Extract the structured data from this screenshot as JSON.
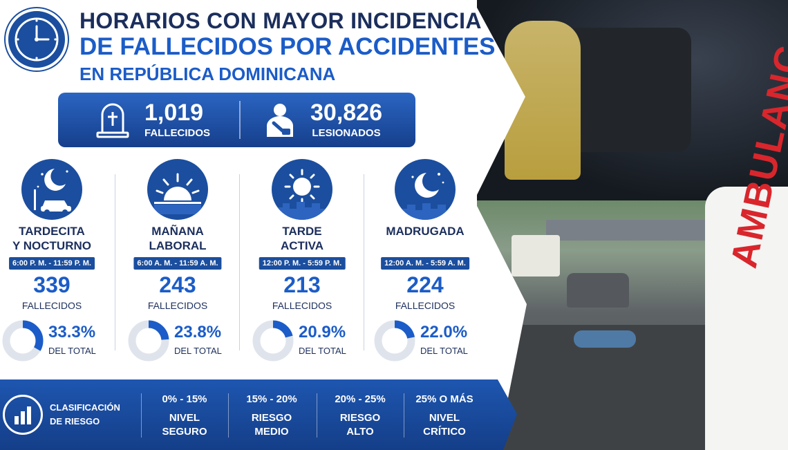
{
  "title": {
    "line1": "HORARIOS CON MAYOR INCIDENCIA",
    "line2": "DE FALLECIDOS POR ACCIDENTES",
    "line3": "EN REPÚBLICA DOMINICANA"
  },
  "totals": {
    "deaths": {
      "value": "1,019",
      "label": "FALLECIDOS",
      "icon": "gravestone-icon"
    },
    "injured": {
      "value": "30,826",
      "label": "LESIONADOS",
      "icon": "injured-person-icon"
    }
  },
  "chart_data": {
    "type": "bar",
    "categories": [
      "TARDECITA Y NOCTURNO",
      "MAÑANA LABORAL",
      "TARDE ACTIVA",
      "MADRUGADA"
    ],
    "series": [
      {
        "name": "FALLECIDOS",
        "values": [
          339,
          243,
          213,
          224
        ]
      },
      {
        "name": "DEL TOTAL",
        "values": [
          33.3,
          23.8,
          20.9,
          22.0
        ]
      }
    ]
  },
  "periods": [
    {
      "name_line1": "TARDECITA",
      "name_line2": "Y NOCTURNO",
      "range": "6:00 P. M. - 11:59 P. M.",
      "count": "339",
      "count_label": "FALLECIDOS",
      "percent_value": 33.3,
      "percent": "33.3%",
      "total_label": "DEL TOTAL",
      "icon": "night-car-icon"
    },
    {
      "name_line1": "MAÑANA",
      "name_line2": "LABORAL",
      "range": "6:00 A. M. - 11:59 A. M.",
      "count": "243",
      "count_label": "FALLECIDOS",
      "percent_value": 23.8,
      "percent": "23.8%",
      "total_label": "DEL TOTAL",
      "icon": "sunrise-icon"
    },
    {
      "name_line1": "TARDE",
      "name_line2": "ACTIVA",
      "range": "12:00 P. M. - 5:59 P. M.",
      "count": "213",
      "count_label": "FALLECIDOS",
      "percent_value": 20.9,
      "percent": "20.9%",
      "total_label": "DEL TOTAL",
      "icon": "sun-icon"
    },
    {
      "name_line1": "MADRUGADA",
      "name_line2": "",
      "range": "12:00 A. M. - 5:59 A. M.",
      "count": "224",
      "count_label": "FALLECIDOS",
      "percent_value": 22.0,
      "percent": "22.0%",
      "total_label": "DEL TOTAL",
      "icon": "moon-icon"
    }
  ],
  "risk": {
    "title_line1": "CLASIFICACIÓN",
    "title_line2": "DE RIESGO",
    "levels": [
      {
        "range": "0% - 15%",
        "line1": "NIVEL",
        "line2": "SEGURO"
      },
      {
        "range": "15% - 20%",
        "line1": "RIESGO",
        "line2": "MEDIO"
      },
      {
        "range": "20% - 25%",
        "line1": "RIESGO",
        "line2": "ALTO"
      },
      {
        "range": "25% O MÁS",
        "line1": "NIVEL",
        "line2": "CRÍTICO"
      }
    ]
  },
  "photo": {
    "ambulance_text": "AMBULANC"
  },
  "colors": {
    "primary": "#1b4e9e",
    "accent": "#1b5cc8",
    "dark": "#1b2e5c",
    "donut_track": "#dfe4ec",
    "ambulance_red": "#d8262c"
  }
}
